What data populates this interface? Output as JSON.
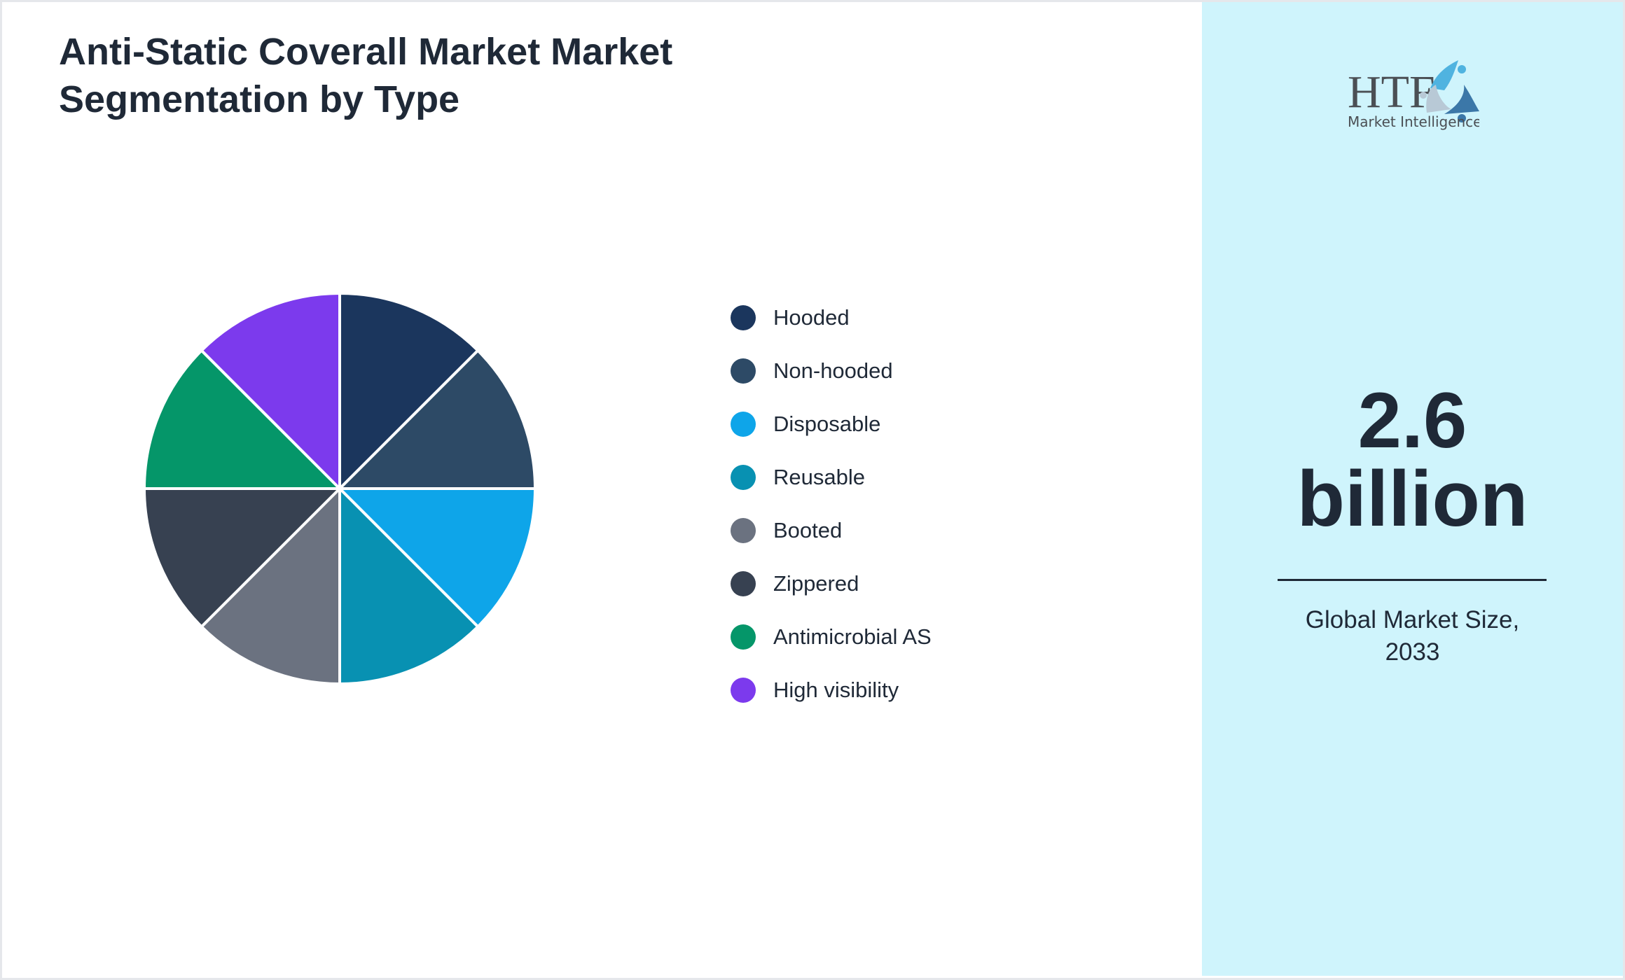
{
  "chart_data": {
    "type": "pie",
    "title": "Anti-Static Coverall Market Market Segmentation by Type",
    "categories": [
      "Hooded",
      "Non-hooded",
      "Disposable",
      "Reusable",
      "Booted",
      "Zippered",
      "Antimicrobial AS",
      "High visibility"
    ],
    "values": [
      12.5,
      12.5,
      12.5,
      12.5,
      12.5,
      12.5,
      12.5,
      12.5
    ],
    "colors": [
      "#1b365d",
      "#2d4a66",
      "#0ea5e9",
      "#0891b2",
      "#6b7280",
      "#374151",
      "#059669",
      "#7c3aed"
    ],
    "legend_position": "right"
  },
  "title_lines": [
    "Anti-Static Coverall Market Market",
    "Segmentation by Type"
  ],
  "panel": {
    "logo_text": "HTF",
    "logo_subtext": "Market Intelligence",
    "value_line1": "2.6",
    "value_line2": "billion",
    "caption_line1": "Global Market Size,",
    "caption_line2": "2033"
  }
}
